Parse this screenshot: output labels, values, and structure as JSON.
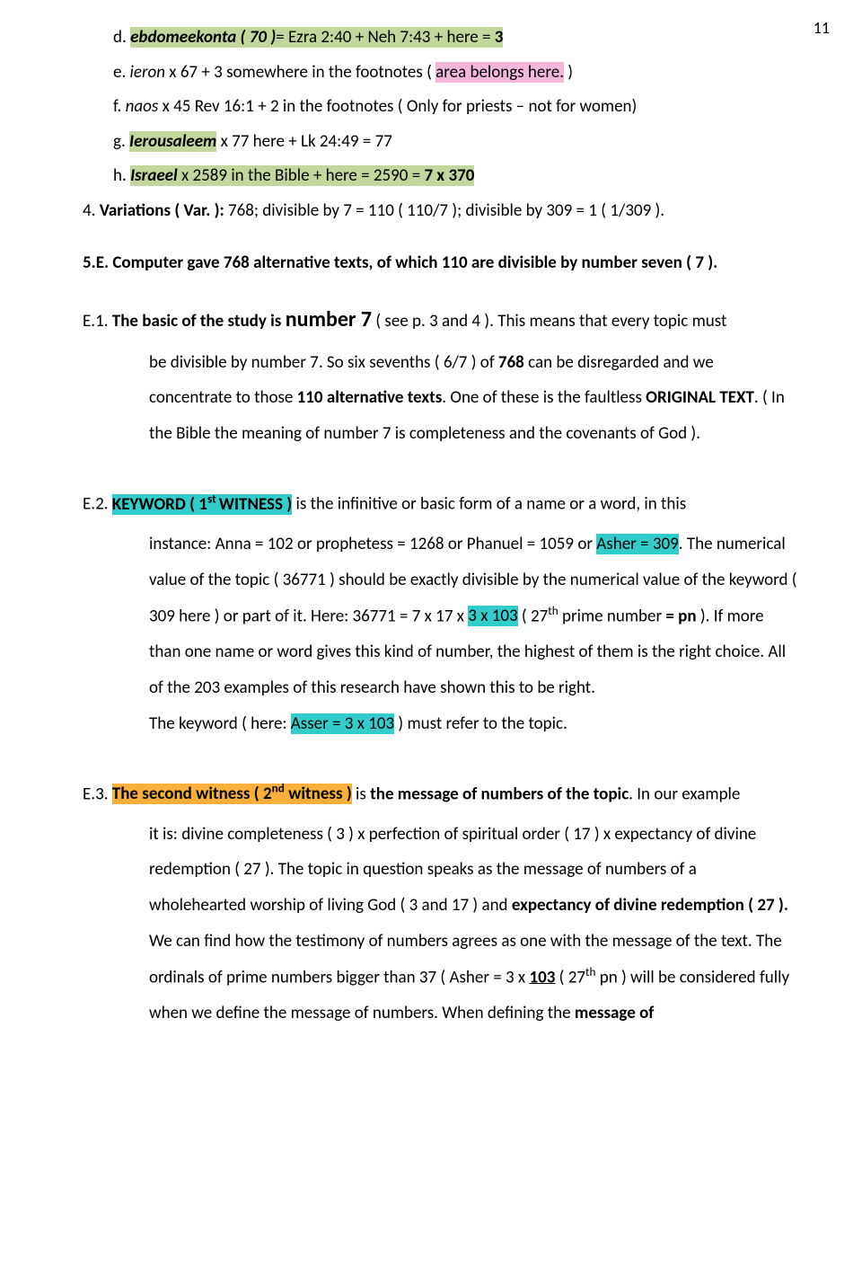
{
  "page_number": "11",
  "colors": {
    "olive": "#c3d69b",
    "pink": "#f4b7dc",
    "yellow": "#ffff00",
    "cyan": "#33cccc",
    "orange": "#f8b03b",
    "text": "#000000",
    "background": "#ffffff"
  },
  "typography": {
    "body_fontsize_pt": 14,
    "line_height": 2.1,
    "font_family": "Calibri"
  },
  "items": {
    "d_pre": "d. ",
    "d_hl": "ebdomeekonta ( 70 )",
    "d_post": "= Ezra 2:40 + Neh 7:43 + here = ",
    "d_bold": "3",
    "e_pre": "e. ",
    "e_it": "ieron",
    "e_mid": " x 67 + 3 somewhere in the footnotes ( ",
    "e_pink": "area belongs here.",
    "e_post": " )",
    "f_pre": "f.  ",
    "f_it": "naos",
    "f_mid": " x 45 Rev 16:1 + 2 in the footnotes ",
    "f_yellow": "  ",
    "f_post": "( Only for priests – not for women)",
    "g_pre": "g. ",
    "g_hl": "Ierousaleem",
    "g_post": " x 77 here + Lk 24:49 = 77",
    "h_pre": "h. ",
    "h_it": "Israeel",
    "h_mid": " x 2589 in the Bible + here = 2590 = ",
    "h_bold": "7 x 370",
    "var_pre": "4. ",
    "var_bold": "Variations ( Var. ):",
    "var_mid": " 768;     divisible by 7 = 110 ( 110/7 );    divisible by 309  = 1 ( 1/309 ).",
    "sec5e": "5.E. Computer gave 768 alternative texts, of which 110 are divisible by number seven ( 7 ).",
    "e1_label": "  E.1.   ",
    "e1_bold1": "The basic of the study is ",
    "e1_num7": "number 7",
    "e1_post1": " ( see p. 3 and 4 ). This means that every topic must",
    "e1_l2": "be divisible by number 7. So six sevenths ( 6/7 ) of ",
    "e1_l2b": "768",
    "e1_l2c": " can be disregarded and we",
    "e1_l3a": "concentrate to those ",
    "e1_l3b": "110 alternative texts",
    "e1_l3c": ". One of these is the faultless ",
    "e1_l3d": "ORIGINAL TEXT",
    "e1_l3e": ".",
    "e1_l4": "( In the Bible the meaning of number 7  is completeness and the covenants of God ).",
    "e2_label": "  E.2.   ",
    "e2_cyan1": "KEYWORD ( 1",
    "e2_cyan1_sup": "st ",
    "e2_cyan1_post": "WITNESS )",
    "e2_r1": " is the infinitive or basic form of a name or a word, in this",
    "e2_l2a": "instance: Anna = 102 or prophetess = 1268 or Phanuel = 1059 or ",
    "e2_cyan2": "Asher = 309",
    "e2_l2b": ".  The",
    "e2_l3": "numerical value of the topic ( 36771 ) should be exactly divisible by the numerical value of",
    "e2_l4a": "the  keyword ( 309 here ) or part of it. Here: 36771 = 7 x 17 x ",
    "e2_cyan3": "3 x 103",
    "e2_l4b": " ( 27",
    "e2_l4sup": "th",
    "e2_l4c": " prime number ",
    "e2_l4d": "=",
    "e2_l5a": "pn",
    "e2_l5b": " ). If more than one name or word gives this kind of number, the highest of them is the",
    "e2_l6": "right  choice. All of the 203 examples of this research have shown this to be right.",
    "e2_l7a": "The keyword ( here: ",
    "e2_cyan4": "Asser = 3 x 103",
    "e2_l7b": " ) must refer to the topic.",
    "e3_label": "  E.3.   ",
    "e3_orange_a": "The second witness ( 2",
    "e3_orange_sup": "nd",
    "e3_orange_b": " witness )",
    "e3_r1a": " is ",
    "e3_r1b": "the message of numbers of the topic",
    "e3_r1c": ". In our example",
    "e3_l2": "it is: divine completeness ( 3 ) x perfection of spiritual order ( 17 ) x expectancy of divine",
    "e3_l3": "redemption ( 27 ). The topic in question speaks as the message of numbers of a",
    "e3_l4a": "wholehearted worship of living God ( 3 and 17 ) and ",
    "e3_l4b": "expectancy of divine redemption",
    "e3_l5a": "( 27 ).",
    "e3_l5b": " We can find how the testimony of numbers agrees as one with the message of the",
    "e3_l6a": "text. The ordinals of prime numbers bigger than 37 ( Asher = 3 x ",
    "e3_l6u": "103",
    "e3_l6b": " ( 27",
    "e3_l6sup": "th",
    "e3_l6c": " pn ) will be",
    "e3_l7a": "considered fully when we define the message of numbers. When defining the ",
    "e3_l7b": "message of"
  }
}
